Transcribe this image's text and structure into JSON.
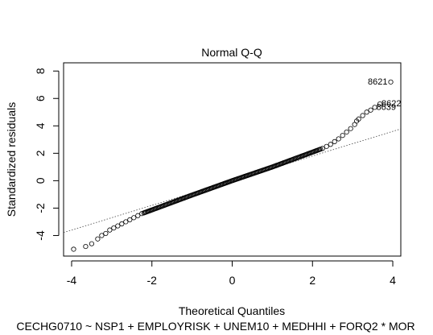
{
  "chart_data": {
    "type": "scatter",
    "title": "Normal Q-Q",
    "xlabel": "Theoretical Quantiles",
    "ylabel": "Standardized residuals",
    "subtitle": "CECHG0710 ~ NSP1 + EMPLOYRISK + UNEM10 + MEDHHI + FORQ2 * MOR",
    "xlim": [
      -4.2,
      4.2
    ],
    "ylim": [
      -5.5,
      8.6
    ],
    "xticks": [
      -4,
      -2,
      0,
      2,
      4
    ],
    "xtick_labels": [
      "-4",
      "-2",
      "0",
      "2",
      "4"
    ],
    "yticks": [
      -4,
      -2,
      0,
      2,
      4,
      6,
      8
    ],
    "ytick_labels": [
      "-4",
      "-2",
      "0",
      "2",
      "4",
      "6",
      "8"
    ],
    "reference_line": {
      "intercept": 0.0,
      "slope": 0.9
    },
    "point_style": "open-circle",
    "labeled_points": [
      {
        "label": "8621",
        "x": 3.95,
        "y": 7.2
      },
      {
        "label": "8622",
        "x": 3.68,
        "y": 5.6
      },
      {
        "label": "8639",
        "x": 3.55,
        "y": 5.35
      }
    ],
    "tail_points": [
      [
        -3.95,
        -5.0
      ],
      [
        -3.65,
        -4.8
      ],
      [
        -3.5,
        -4.6
      ],
      [
        -3.35,
        -4.25
      ],
      [
        -3.25,
        -4.0
      ],
      [
        -3.15,
        -3.85
      ],
      [
        -3.05,
        -3.6
      ],
      [
        -2.95,
        -3.45
      ],
      [
        -2.85,
        -3.3
      ],
      [
        -2.75,
        -3.15
      ],
      [
        -2.65,
        -3.0
      ],
      [
        -2.55,
        -2.85
      ],
      [
        -2.45,
        -2.7
      ],
      [
        -2.35,
        -2.55
      ],
      [
        -2.25,
        -2.4
      ],
      [
        2.25,
        2.35
      ],
      [
        2.35,
        2.5
      ],
      [
        2.45,
        2.65
      ],
      [
        2.55,
        2.85
      ],
      [
        2.65,
        3.05
      ],
      [
        2.75,
        3.3
      ],
      [
        2.85,
        3.55
      ],
      [
        2.95,
        3.8
      ],
      [
        3.05,
        4.1
      ],
      [
        3.1,
        4.35
      ],
      [
        3.15,
        4.5
      ],
      [
        3.25,
        4.75
      ],
      [
        3.35,
        5.0
      ],
      [
        3.45,
        5.15
      ],
      [
        3.55,
        5.35
      ],
      [
        3.68,
        5.6
      ],
      [
        3.95,
        7.2
      ]
    ],
    "body_curve": {
      "n": 170,
      "x_from": -2.2,
      "x_to": 2.2,
      "segments": [
        [
          -2.2,
          -2.35
        ],
        [
          -1.0,
          -1.05
        ],
        [
          0.0,
          0.0
        ],
        [
          1.0,
          1.0
        ],
        [
          2.2,
          2.3
        ]
      ]
    }
  }
}
